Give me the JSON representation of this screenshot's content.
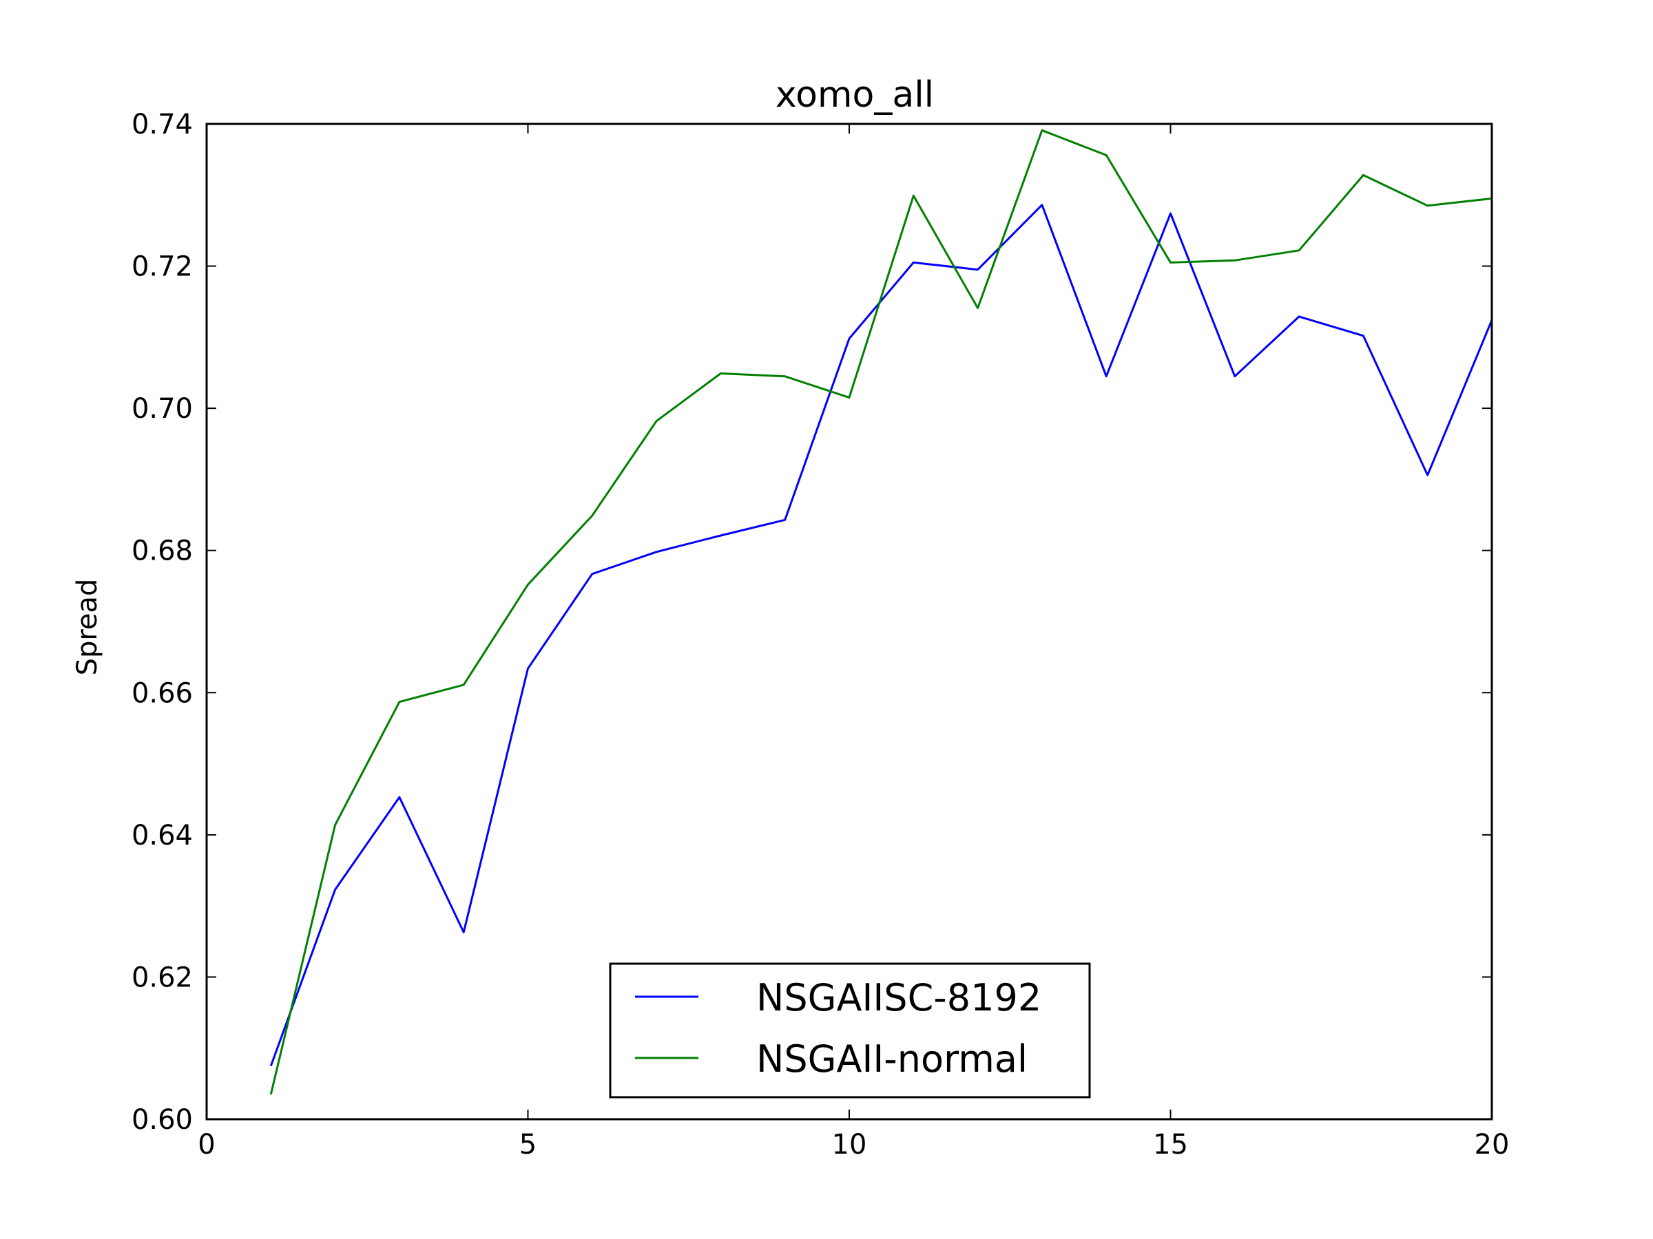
{
  "chart_data": {
    "type": "line",
    "title": "xomo_all",
    "xlabel": "",
    "ylabel": "Spread",
    "xlim": [
      0,
      20
    ],
    "ylim": [
      0.6,
      0.74
    ],
    "xticks": [
      0,
      5,
      10,
      15,
      20
    ],
    "xtick_labels": [
      "0",
      "5",
      "10",
      "15",
      "20"
    ],
    "yticks": [
      0.6,
      0.62,
      0.64,
      0.66,
      0.68,
      0.7,
      0.72,
      0.74
    ],
    "ytick_labels": [
      "0.60",
      "0.62",
      "0.64",
      "0.66",
      "0.68",
      "0.70",
      "0.72",
      "0.74"
    ],
    "grid": false,
    "legend_position": "lower-center",
    "x": [
      1,
      2,
      3,
      4,
      5,
      6,
      7,
      8,
      9,
      10,
      11,
      12,
      13,
      14,
      15,
      16,
      17,
      18,
      19,
      20
    ],
    "series": [
      {
        "name": "NSGAIISC-8192",
        "color": "#0000ff",
        "values": [
          0.6075,
          0.6323,
          0.6453,
          0.6263,
          0.6634,
          0.6767,
          0.6798,
          0.6821,
          0.6843,
          0.7098,
          0.7205,
          0.7195,
          0.7286,
          0.7045,
          0.7274,
          0.7045,
          0.7129,
          0.7102,
          0.6906,
          0.7124
        ]
      },
      {
        "name": "NSGAII-normal",
        "color": "#008000",
        "values": [
          0.6035,
          0.6414,
          0.6587,
          0.6611,
          0.6752,
          0.6849,
          0.6982,
          0.7049,
          0.7045,
          0.7015,
          0.7299,
          0.7141,
          0.7391,
          0.7356,
          0.7205,
          0.7208,
          0.7222,
          0.7328,
          0.7285,
          0.7295
        ]
      }
    ]
  }
}
